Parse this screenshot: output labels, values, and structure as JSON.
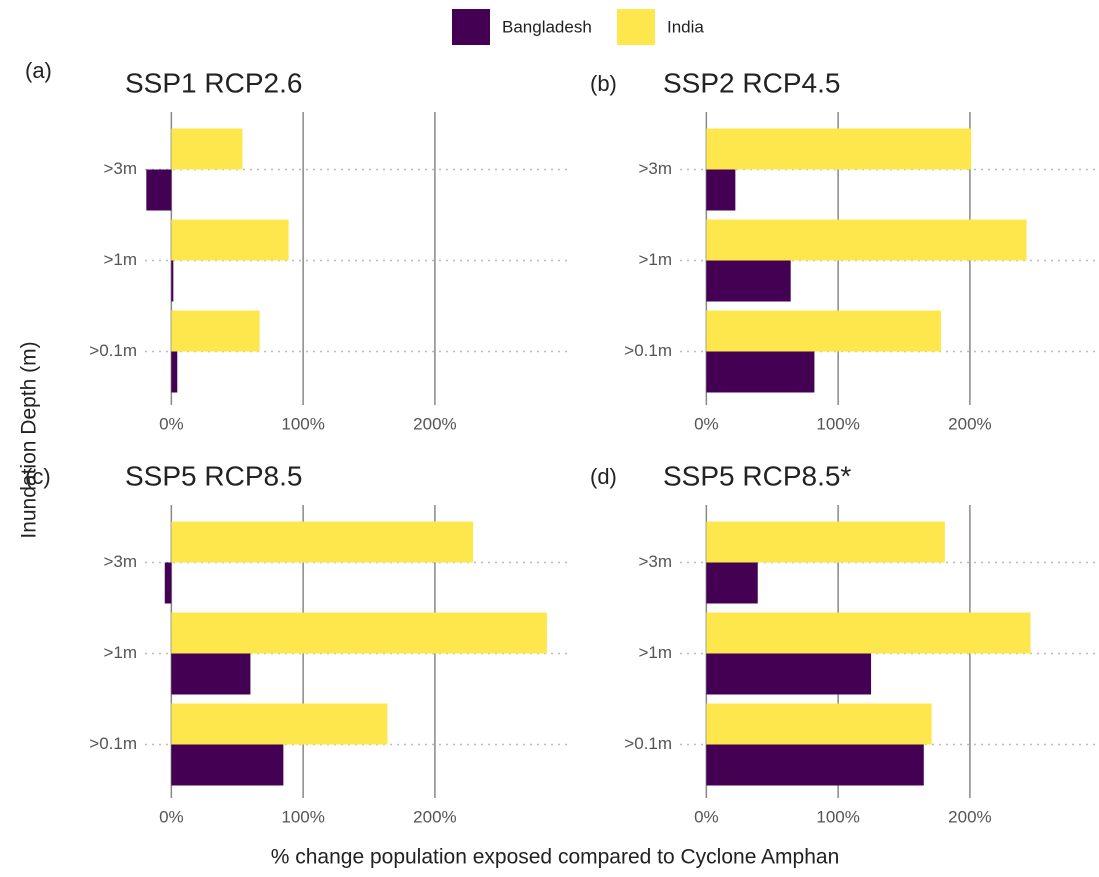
{
  "figure": {
    "xlabel": "% change population exposed compared to Cyclone Amphan",
    "ylabel": "Inundation Depth (m)"
  },
  "chart_data": [
    {
      "type": "bar",
      "panel": "(a)",
      "title": "SSP1 RCP2.6",
      "orientation": "horizontal",
      "categories": [
        ">0.1m",
        ">1m",
        ">3m"
      ],
      "series": [
        {
          "name": "Bangladesh",
          "color": "#440154",
          "values": [
            4.5,
            1.5,
            -19
          ]
        },
        {
          "name": "India",
          "color": "#fde74c",
          "values": [
            67,
            89,
            54
          ]
        }
      ],
      "xlim": [
        -20,
        301
      ],
      "xticks": [
        {
          "value": 0,
          "label": "0%"
        },
        {
          "value": 100,
          "label": "100%"
        },
        {
          "value": 200,
          "label": "200%"
        }
      ]
    },
    {
      "type": "bar",
      "panel": "(b)",
      "title": "SSP2 RCP4.5",
      "orientation": "horizontal",
      "categories": [
        ">0.1m",
        ">1m",
        ">3m"
      ],
      "series": [
        {
          "name": "Bangladesh",
          "color": "#440154",
          "values": [
            82,
            64,
            22
          ]
        },
        {
          "name": "India",
          "color": "#fde74c",
          "values": [
            178,
            243,
            201
          ]
        }
      ],
      "xlim": [
        -20,
        301
      ],
      "xticks": [
        {
          "value": 0,
          "label": "0%"
        },
        {
          "value": 100,
          "label": "100%"
        },
        {
          "value": 200,
          "label": "200%"
        }
      ]
    },
    {
      "type": "bar",
      "panel": "(c)",
      "title": "SSP5 RCP8.5",
      "orientation": "horizontal",
      "categories": [
        ">0.1m",
        ">1m",
        ">3m"
      ],
      "series": [
        {
          "name": "Bangladesh",
          "color": "#440154",
          "values": [
            85,
            60,
            -5
          ]
        },
        {
          "name": "India",
          "color": "#fde74c",
          "values": [
            164,
            285,
            229
          ]
        }
      ],
      "xlim": [
        -20,
        301
      ],
      "xticks": [
        {
          "value": 0,
          "label": "0%"
        },
        {
          "value": 100,
          "label": "100%"
        },
        {
          "value": 200,
          "label": "200%"
        }
      ]
    },
    {
      "type": "bar",
      "panel": "(d)",
      "title": "SSP5 RCP8.5*",
      "orientation": "horizontal",
      "categories": [
        ">0.1m",
        ">1m",
        ">3m"
      ],
      "series": [
        {
          "name": "Bangladesh",
          "color": "#440154",
          "values": [
            165,
            125,
            39
          ]
        },
        {
          "name": "India",
          "color": "#fde74c",
          "values": [
            171,
            246,
            181
          ]
        }
      ],
      "xlim": [
        -20,
        301
      ],
      "xticks": [
        {
          "value": 0,
          "label": "0%"
        },
        {
          "value": 100,
          "label": "100%"
        },
        {
          "value": 200,
          "label": "200%"
        }
      ]
    }
  ]
}
